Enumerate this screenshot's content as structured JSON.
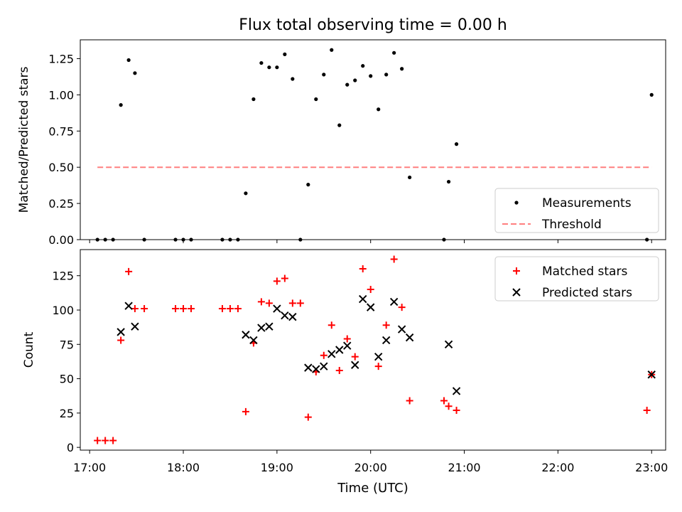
{
  "figure": {
    "title": "Flux total observing time = 0.00 h",
    "xlabel": "Time (UTC)"
  },
  "chart_data": [
    {
      "type": "scatter",
      "ylabel": "Matched/Predicted stars",
      "xlim": [
        "16:54",
        "23:09"
      ],
      "ylim": [
        0,
        1.38
      ],
      "yticks": [
        0.0,
        0.25,
        0.5,
        0.75,
        1.0,
        1.25
      ],
      "ytick_labels": [
        "0.00",
        "0.25",
        "0.50",
        "0.75",
        "1.00",
        "1.25"
      ],
      "xticks": [
        "17:00",
        "18:00",
        "19:00",
        "20:00",
        "21:00",
        "22:00",
        "23:00"
      ],
      "grid": false,
      "legend_position": "lower-right",
      "legend": [
        "Measurements",
        "Threshold"
      ],
      "colors": {
        "measurements": "#000000",
        "threshold": "#ff7f7f"
      },
      "series": [
        {
          "name": "Measurements",
          "marker": "dot",
          "points": [
            [
              "17:05",
              0
            ],
            [
              "17:10",
              0
            ],
            [
              "17:15",
              0
            ],
            [
              "17:20",
              0.93
            ],
            [
              "17:25",
              1.24
            ],
            [
              "17:29",
              1.15
            ],
            [
              "17:35",
              0
            ],
            [
              "17:55",
              0
            ],
            [
              "18:00",
              0
            ],
            [
              "18:05",
              0
            ],
            [
              "18:25",
              0
            ],
            [
              "18:30",
              0
            ],
            [
              "18:35",
              0
            ],
            [
              "18:40",
              0.32
            ],
            [
              "18:45",
              0.97
            ],
            [
              "18:50",
              1.22
            ],
            [
              "18:55",
              1.19
            ],
            [
              "19:00",
              1.19
            ],
            [
              "19:05",
              1.28
            ],
            [
              "19:10",
              1.11
            ],
            [
              "19:15",
              0
            ],
            [
              "19:20",
              0.38
            ],
            [
              "19:25",
              0.97
            ],
            [
              "19:30",
              1.14
            ],
            [
              "19:35",
              1.31
            ],
            [
              "19:40",
              0.79
            ],
            [
              "19:45",
              1.07
            ],
            [
              "19:50",
              1.1
            ],
            [
              "19:55",
              1.2
            ],
            [
              "20:00",
              1.13
            ],
            [
              "20:05",
              0.9
            ],
            [
              "20:10",
              1.14
            ],
            [
              "20:15",
              1.29
            ],
            [
              "20:20",
              1.18
            ],
            [
              "20:25",
              0.43
            ],
            [
              "20:47",
              0
            ],
            [
              "20:50",
              0.4
            ],
            [
              "20:55",
              0.66
            ],
            [
              "22:57",
              0
            ],
            [
              "23:00",
              1.0
            ]
          ]
        },
        {
          "name": "Threshold",
          "style": "dashed",
          "points": [
            [
              "17:05",
              0.5
            ],
            [
              "23:00",
              0.5
            ]
          ]
        }
      ]
    },
    {
      "type": "scatter",
      "ylabel": "Count",
      "xlim": [
        "16:54",
        "23:09"
      ],
      "ylim": [
        -2,
        144
      ],
      "yticks": [
        0,
        25,
        50,
        75,
        100,
        125
      ],
      "ytick_labels": [
        "0",
        "25",
        "50",
        "75",
        "100",
        "125"
      ],
      "xticks": [
        "17:00",
        "18:00",
        "19:00",
        "20:00",
        "21:00",
        "22:00",
        "23:00"
      ],
      "xlabel": "Time (UTC)",
      "grid": false,
      "legend_position": "upper-right",
      "legend": [
        "Matched stars",
        "Predicted stars"
      ],
      "colors": {
        "matched": "#ff0000",
        "predicted": "#000000"
      },
      "series": [
        {
          "name": "Matched stars",
          "marker": "plus",
          "points": [
            [
              "17:05",
              5
            ],
            [
              "17:10",
              5
            ],
            [
              "17:15",
              5
            ],
            [
              "17:20",
              78
            ],
            [
              "17:25",
              128
            ],
            [
              "17:29",
              101
            ],
            [
              "17:35",
              101
            ],
            [
              "17:55",
              101
            ],
            [
              "18:00",
              101
            ],
            [
              "18:05",
              101
            ],
            [
              "18:25",
              101
            ],
            [
              "18:30",
              101
            ],
            [
              "18:35",
              101
            ],
            [
              "18:40",
              26
            ],
            [
              "18:45",
              76
            ],
            [
              "18:50",
              106
            ],
            [
              "18:55",
              105
            ],
            [
              "19:00",
              121
            ],
            [
              "19:05",
              123
            ],
            [
              "19:10",
              105
            ],
            [
              "19:15",
              105
            ],
            [
              "19:20",
              22
            ],
            [
              "19:25",
              55
            ],
            [
              "19:30",
              67
            ],
            [
              "19:35",
              89
            ],
            [
              "19:40",
              56
            ],
            [
              "19:45",
              79
            ],
            [
              "19:50",
              66
            ],
            [
              "19:55",
              130
            ],
            [
              "20:00",
              115
            ],
            [
              "20:05",
              59
            ],
            [
              "20:10",
              89
            ],
            [
              "20:15",
              137
            ],
            [
              "20:20",
              102
            ],
            [
              "20:25",
              34
            ],
            [
              "20:47",
              34
            ],
            [
              "20:50",
              30
            ],
            [
              "20:55",
              27
            ],
            [
              "22:57",
              27
            ],
            [
              "23:00",
              53
            ]
          ]
        },
        {
          "name": "Predicted stars",
          "marker": "x",
          "points": [
            [
              "17:20",
              84
            ],
            [
              "17:25",
              103
            ],
            [
              "17:29",
              88
            ],
            [
              "18:40",
              82
            ],
            [
              "18:45",
              78
            ],
            [
              "18:50",
              87
            ],
            [
              "18:55",
              88
            ],
            [
              "19:00",
              101
            ],
            [
              "19:05",
              96
            ],
            [
              "19:10",
              95
            ],
            [
              "19:20",
              58
            ],
            [
              "19:25",
              57
            ],
            [
              "19:30",
              59
            ],
            [
              "19:35",
              68
            ],
            [
              "19:40",
              71
            ],
            [
              "19:45",
              74
            ],
            [
              "19:50",
              60
            ],
            [
              "19:55",
              108
            ],
            [
              "20:00",
              102
            ],
            [
              "20:05",
              66
            ],
            [
              "20:10",
              78
            ],
            [
              "20:15",
              106
            ],
            [
              "20:20",
              86
            ],
            [
              "20:25",
              80
            ],
            [
              "20:50",
              75
            ],
            [
              "20:55",
              41
            ],
            [
              "23:00",
              53
            ]
          ]
        }
      ]
    }
  ]
}
